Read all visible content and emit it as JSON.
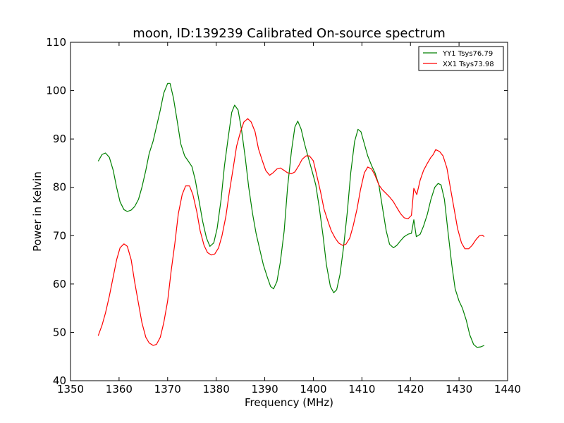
{
  "chart_data": {
    "type": "line",
    "title": "moon, ID:139239 Calibrated On-source spectrum",
    "xlabel": "Frequency (MHz)",
    "ylabel": "Power in Kelvin",
    "xlim": [
      1350,
      1440
    ],
    "ylim": [
      40,
      110
    ],
    "xticks": [
      1350,
      1360,
      1370,
      1380,
      1390,
      1400,
      1410,
      1420,
      1430,
      1440
    ],
    "yticks": [
      40,
      50,
      60,
      70,
      80,
      90,
      100,
      110
    ],
    "grid": false,
    "legend_position": "top-right",
    "series": [
      {
        "name": "YY1 Tsys76.79",
        "color": "#008000",
        "points": [
          [
            1355.7,
            85.4
          ],
          [
            1356.5,
            86.8
          ],
          [
            1357.2,
            87.1
          ],
          [
            1358.0,
            86.2
          ],
          [
            1358.8,
            83.5
          ],
          [
            1359.5,
            80.0
          ],
          [
            1360.2,
            77.0
          ],
          [
            1361.0,
            75.4
          ],
          [
            1361.7,
            75.0
          ],
          [
            1362.5,
            75.3
          ],
          [
            1363.2,
            76.0
          ],
          [
            1364.0,
            77.5
          ],
          [
            1364.7,
            80.0
          ],
          [
            1365.5,
            83.5
          ],
          [
            1366.2,
            87.0
          ],
          [
            1367.0,
            89.5
          ],
          [
            1367.7,
            92.5
          ],
          [
            1368.5,
            96.0
          ],
          [
            1369.2,
            99.5
          ],
          [
            1370.0,
            101.5
          ],
          [
            1370.5,
            101.5
          ],
          [
            1371.2,
            98.5
          ],
          [
            1372.0,
            93.5
          ],
          [
            1372.7,
            89.0
          ],
          [
            1373.5,
            86.5
          ],
          [
            1374.2,
            85.5
          ],
          [
            1375.0,
            84.3
          ],
          [
            1375.7,
            81.5
          ],
          [
            1376.5,
            77.0
          ],
          [
            1377.2,
            73.0
          ],
          [
            1378.0,
            69.5
          ],
          [
            1378.7,
            67.8
          ],
          [
            1379.5,
            68.5
          ],
          [
            1380.2,
            71.5
          ],
          [
            1381.0,
            77.5
          ],
          [
            1381.7,
            84.5
          ],
          [
            1382.5,
            90.5
          ],
          [
            1383.2,
            95.5
          ],
          [
            1383.8,
            97.0
          ],
          [
            1384.5,
            96.0
          ],
          [
            1385.2,
            92.0
          ],
          [
            1386.0,
            86.0
          ],
          [
            1386.7,
            80.0
          ],
          [
            1387.5,
            74.5
          ],
          [
            1388.2,
            70.5
          ],
          [
            1389.0,
            67.0
          ],
          [
            1389.7,
            64.0
          ],
          [
            1390.5,
            61.5
          ],
          [
            1391.2,
            59.5
          ],
          [
            1391.8,
            59.0
          ],
          [
            1392.5,
            60.5
          ],
          [
            1393.2,
            64.5
          ],
          [
            1394.0,
            71.0
          ],
          [
            1394.7,
            80.0
          ],
          [
            1395.5,
            87.5
          ],
          [
            1396.2,
            92.5
          ],
          [
            1396.8,
            93.7
          ],
          [
            1397.5,
            92.0
          ],
          [
            1398.2,
            89.0
          ],
          [
            1399.0,
            86.0
          ],
          [
            1399.7,
            83.5
          ],
          [
            1400.5,
            80.5
          ],
          [
            1401.2,
            76.0
          ],
          [
            1402.0,
            70.0
          ],
          [
            1402.7,
            64.0
          ],
          [
            1403.5,
            59.5
          ],
          [
            1404.2,
            58.2
          ],
          [
            1404.8,
            58.8
          ],
          [
            1405.5,
            62.0
          ],
          [
            1406.2,
            67.5
          ],
          [
            1407.0,
            75.0
          ],
          [
            1407.7,
            83.0
          ],
          [
            1408.5,
            89.5
          ],
          [
            1409.2,
            92.0
          ],
          [
            1409.8,
            91.5
          ],
          [
            1410.5,
            89.0
          ],
          [
            1411.2,
            86.5
          ],
          [
            1412.0,
            84.5
          ],
          [
            1412.7,
            83.0
          ],
          [
            1413.5,
            80.5
          ],
          [
            1414.2,
            76.0
          ],
          [
            1415.0,
            71.0
          ],
          [
            1415.7,
            68.2
          ],
          [
            1416.5,
            67.5
          ],
          [
            1417.2,
            68.0
          ],
          [
            1418.0,
            69.0
          ],
          [
            1418.7,
            69.8
          ],
          [
            1419.5,
            70.3
          ],
          [
            1420.2,
            70.5
          ],
          [
            1420.7,
            73.3
          ],
          [
            1421.2,
            69.8
          ],
          [
            1422.0,
            70.3
          ],
          [
            1422.7,
            72.0
          ],
          [
            1423.5,
            74.5
          ],
          [
            1424.2,
            77.5
          ],
          [
            1425.0,
            80.0
          ],
          [
            1425.7,
            80.8
          ],
          [
            1426.3,
            80.5
          ],
          [
            1427.0,
            77.5
          ],
          [
            1427.7,
            71.0
          ],
          [
            1428.5,
            64.0
          ],
          [
            1429.2,
            59.0
          ],
          [
            1430.0,
            56.5
          ],
          [
            1430.7,
            55.0
          ],
          [
            1431.5,
            52.5
          ],
          [
            1432.2,
            49.5
          ],
          [
            1433.0,
            47.5
          ],
          [
            1433.7,
            46.9
          ],
          [
            1434.5,
            47.0
          ],
          [
            1435.2,
            47.3
          ]
        ]
      },
      {
        "name": "XX1 Tsys73.98",
        "color": "#ff0000",
        "points": [
          [
            1355.7,
            49.3
          ],
          [
            1356.5,
            51.5
          ],
          [
            1357.2,
            54.0
          ],
          [
            1358.0,
            57.5
          ],
          [
            1358.8,
            61.5
          ],
          [
            1359.5,
            65.0
          ],
          [
            1360.2,
            67.5
          ],
          [
            1361.0,
            68.3
          ],
          [
            1361.7,
            67.8
          ],
          [
            1362.5,
            65.0
          ],
          [
            1363.2,
            60.5
          ],
          [
            1364.0,
            56.0
          ],
          [
            1364.7,
            52.0
          ],
          [
            1365.5,
            49.0
          ],
          [
            1366.2,
            47.8
          ],
          [
            1367.0,
            47.3
          ],
          [
            1367.7,
            47.5
          ],
          [
            1368.5,
            49.0
          ],
          [
            1369.2,
            52.0
          ],
          [
            1370.0,
            56.5
          ],
          [
            1370.7,
            62.5
          ],
          [
            1371.5,
            68.5
          ],
          [
            1372.2,
            74.5
          ],
          [
            1373.0,
            78.5
          ],
          [
            1373.7,
            80.3
          ],
          [
            1374.5,
            80.3
          ],
          [
            1375.2,
            78.5
          ],
          [
            1376.0,
            75.0
          ],
          [
            1376.7,
            71.0
          ],
          [
            1377.5,
            68.0
          ],
          [
            1378.2,
            66.5
          ],
          [
            1379.0,
            66.0
          ],
          [
            1379.7,
            66.2
          ],
          [
            1380.5,
            67.5
          ],
          [
            1381.2,
            70.0
          ],
          [
            1382.0,
            74.0
          ],
          [
            1382.7,
            79.0
          ],
          [
            1383.5,
            84.0
          ],
          [
            1384.2,
            88.5
          ],
          [
            1385.0,
            91.5
          ],
          [
            1385.7,
            93.5
          ],
          [
            1386.5,
            94.2
          ],
          [
            1387.2,
            93.5
          ],
          [
            1388.0,
            91.5
          ],
          [
            1388.7,
            88.0
          ],
          [
            1389.5,
            85.5
          ],
          [
            1390.2,
            83.5
          ],
          [
            1391.0,
            82.5
          ],
          [
            1391.7,
            83.0
          ],
          [
            1392.5,
            83.8
          ],
          [
            1393.2,
            84.0
          ],
          [
            1394.0,
            83.5
          ],
          [
            1394.7,
            83.0
          ],
          [
            1395.5,
            82.8
          ],
          [
            1396.2,
            83.2
          ],
          [
            1397.0,
            84.5
          ],
          [
            1397.7,
            85.8
          ],
          [
            1398.5,
            86.5
          ],
          [
            1399.2,
            86.5
          ],
          [
            1400.0,
            85.5
          ],
          [
            1400.7,
            82.5
          ],
          [
            1401.5,
            79.0
          ],
          [
            1402.2,
            75.5
          ],
          [
            1403.0,
            73.0
          ],
          [
            1403.7,
            71.0
          ],
          [
            1404.5,
            69.5
          ],
          [
            1405.2,
            68.5
          ],
          [
            1406.0,
            68.0
          ],
          [
            1406.7,
            68.2
          ],
          [
            1407.5,
            69.5
          ],
          [
            1408.2,
            72.0
          ],
          [
            1409.0,
            75.5
          ],
          [
            1409.7,
            79.5
          ],
          [
            1410.5,
            83.0
          ],
          [
            1411.2,
            84.2
          ],
          [
            1412.0,
            83.8
          ],
          [
            1412.7,
            82.5
          ],
          [
            1413.5,
            80.5
          ],
          [
            1414.2,
            79.5
          ],
          [
            1415.0,
            78.7
          ],
          [
            1415.7,
            78.0
          ],
          [
            1416.5,
            77.0
          ],
          [
            1417.2,
            75.8
          ],
          [
            1418.0,
            74.5
          ],
          [
            1418.7,
            73.7
          ],
          [
            1419.5,
            73.5
          ],
          [
            1420.2,
            74.2
          ],
          [
            1420.7,
            79.8
          ],
          [
            1421.3,
            78.5
          ],
          [
            1422.0,
            81.5
          ],
          [
            1422.7,
            83.5
          ],
          [
            1423.5,
            85.0
          ],
          [
            1424.2,
            86.2
          ],
          [
            1424.7,
            86.8
          ],
          [
            1425.2,
            87.8
          ],
          [
            1426.0,
            87.4
          ],
          [
            1426.7,
            86.5
          ],
          [
            1427.5,
            84.0
          ],
          [
            1428.2,
            80.0
          ],
          [
            1429.0,
            75.5
          ],
          [
            1429.7,
            71.5
          ],
          [
            1430.5,
            68.5
          ],
          [
            1431.2,
            67.3
          ],
          [
            1432.0,
            67.3
          ],
          [
            1432.7,
            68.0
          ],
          [
            1433.5,
            69.2
          ],
          [
            1434.2,
            70.0
          ],
          [
            1434.8,
            70.1
          ],
          [
            1435.2,
            69.8
          ]
        ]
      }
    ]
  }
}
